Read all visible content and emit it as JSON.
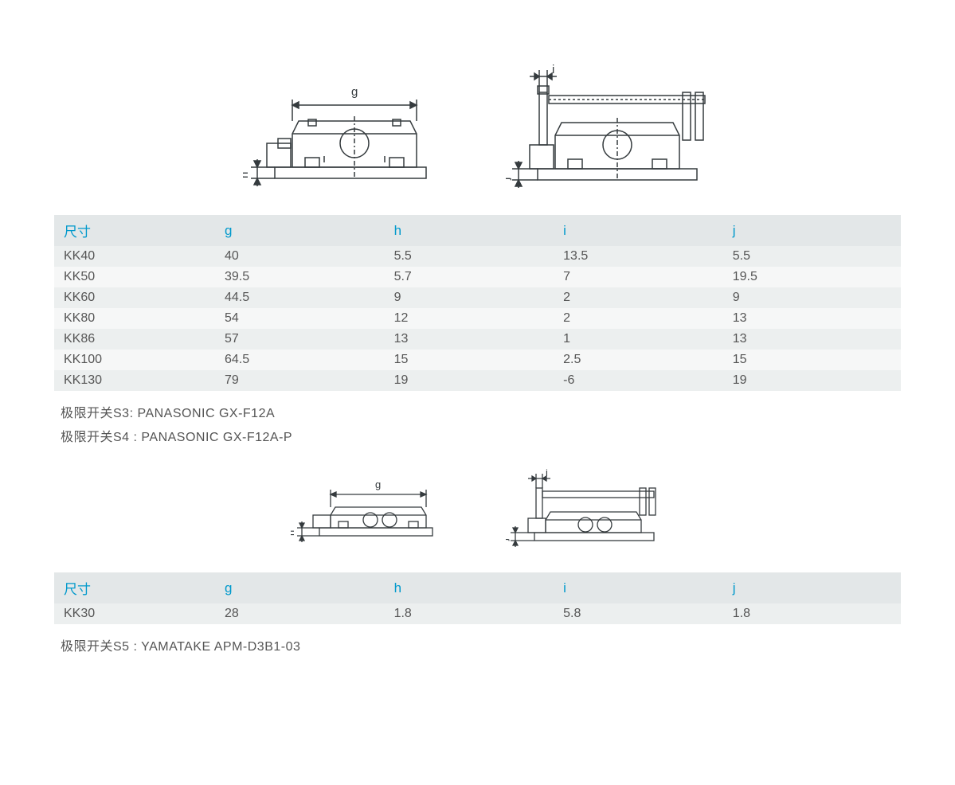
{
  "colors": {
    "header_bg": "#e3e7e8",
    "header_text": "#0099cc",
    "row_odd": "#ecefef",
    "row_even": "#f6f7f7",
    "text": "#555555",
    "stroke": "#353b3e"
  },
  "table1": {
    "columns": [
      "尺寸",
      "g",
      "h",
      "i",
      "j"
    ],
    "rows": [
      [
        "KK40",
        "40",
        "5.5",
        "13.5",
        "5.5"
      ],
      [
        "KK50",
        "39.5",
        "5.7",
        "7",
        "19.5"
      ],
      [
        "KK60",
        "44.5",
        "9",
        "2",
        "9"
      ],
      [
        "KK80",
        "54",
        "12",
        "2",
        "13"
      ],
      [
        "KK86",
        "57",
        "13",
        "1",
        "13"
      ],
      [
        "KK100",
        "64.5",
        "15",
        "2.5",
        "15"
      ],
      [
        "KK130",
        "79",
        "19",
        "-6",
        "19"
      ]
    ]
  },
  "notes1": [
    "极限开关S3: PANASONIC GX-F12A",
    "极限开关S4 : PANASONIC GX-F12A-P"
  ],
  "table2": {
    "columns": [
      "尺寸",
      "g",
      "h",
      "i",
      "j"
    ],
    "rows": [
      [
        "KK30",
        "28",
        "1.8",
        "5.8",
        "1.8"
      ]
    ]
  },
  "notes2": [
    "极限开关S5 : YAMATAKE APM-D3B1-03"
  ],
  "diagram_labels": {
    "g": "g",
    "h": "h",
    "i": "i",
    "j": "j"
  }
}
